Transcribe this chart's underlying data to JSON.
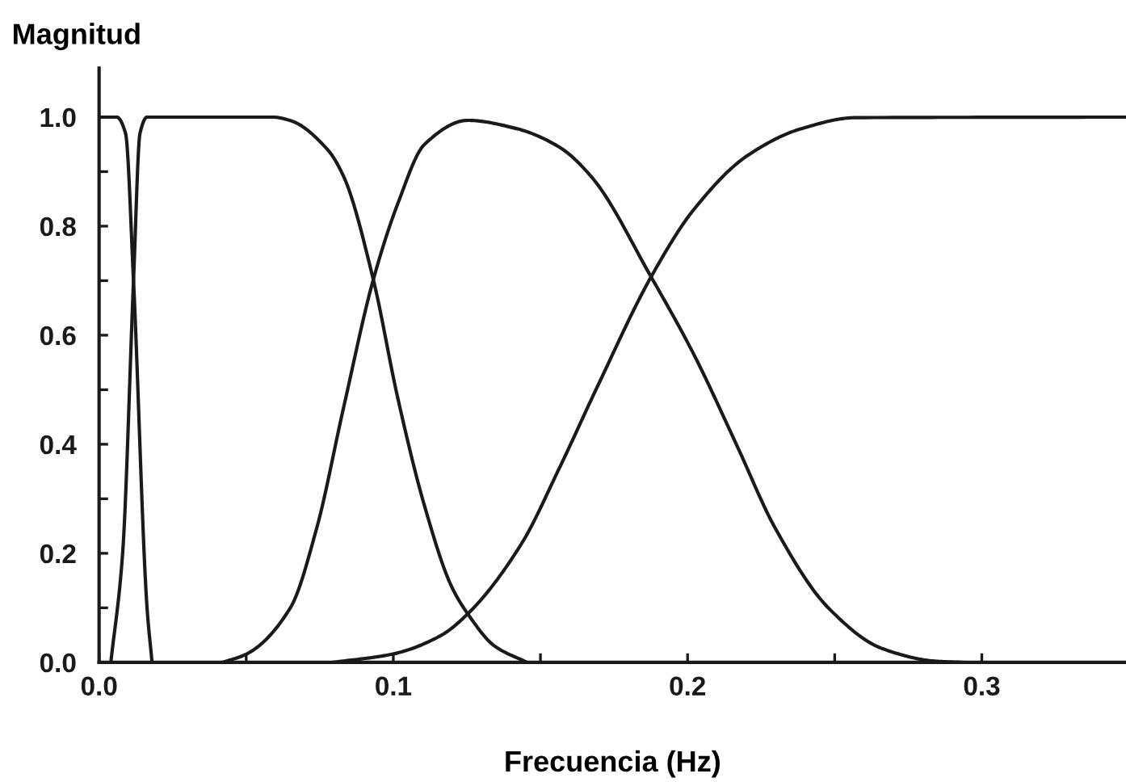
{
  "chart_data": {
    "type": "line",
    "xlabel": "Frecuencia (Hz)",
    "ylabel": "Magnitud",
    "xlim": [
      0,
      0.349
    ],
    "ylim": [
      0,
      1.09
    ],
    "xticks": [
      {
        "value": 0,
        "label": "0.0"
      },
      {
        "value": 0.05,
        "label": null
      },
      {
        "value": 0.1,
        "label": "0.1"
      },
      {
        "value": 0.15,
        "label": null
      },
      {
        "value": 0.2,
        "label": "0.2"
      },
      {
        "value": 0.25,
        "label": null
      },
      {
        "value": 0.3,
        "label": "0.3"
      }
    ],
    "yticks": [
      {
        "value": 0,
        "label": "0.0"
      },
      {
        "value": 0.1,
        "label": null
      },
      0.2,
      {
        "value": 0.3,
        "label": null
      },
      0.4,
      {
        "value": 0.5,
        "label": null
      },
      0.6,
      {
        "value": 0.7,
        "label": null
      },
      0.8,
      {
        "value": 0.9,
        "label": null
      },
      {
        "value": 1,
        "label": "1.0"
      }
    ],
    "grid": false,
    "legend": false,
    "marker": "none",
    "line_style": "solid",
    "series": [
      {
        "color": "#1a1a1a",
        "x": [
          0,
          0.006,
          0.009,
          0.0117,
          0.0163,
          0.018
        ],
        "values": [
          1.0,
          1.0,
          0.97,
          0.7,
          0.1,
          0.0
        ]
      },
      {
        "color": "#1a1a1a",
        "x": [
          0.004,
          0.008,
          0.0117,
          0.0139,
          0.0163,
          0.059,
          0.0648,
          0.0777,
          0.0832,
          0.0932,
          0.1015,
          0.1106,
          0.1198,
          0.1253,
          0.1344,
          0.1454
        ],
        "values": [
          0.0,
          0.2,
          0.7,
          0.97,
          1.0,
          1.0,
          0.994,
          0.94,
          0.89,
          0.702,
          0.485,
          0.287,
          0.139,
          0.089,
          0.03,
          0.0
        ]
      },
      {
        "color": "#1a1a1a",
        "x": [
          0.042,
          0.05,
          0.065,
          0.074,
          0.083,
          0.0932,
          0.1015,
          0.1106,
          0.1253,
          0.1418,
          0.1564,
          0.1674,
          0.1876,
          0.2022,
          0.2169,
          0.2297,
          0.248,
          0.2663,
          0.2846,
          0.2938
        ],
        "values": [
          0.0,
          0.015,
          0.1,
          0.247,
          0.465,
          0.702,
          0.841,
          0.95,
          0.994,
          0.979,
          0.945,
          0.89,
          0.707,
          0.564,
          0.396,
          0.247,
          0.099,
          0.025,
          0.002,
          0.0
        ]
      },
      {
        "color": "#1a1a1a",
        "x": [
          0.0795,
          0.0996,
          0.1161,
          0.1253,
          0.1436,
          0.1564,
          0.1692,
          0.1876,
          0.2022,
          0.2205,
          0.2388,
          0.2571,
          0.349
        ],
        "values": [
          0.0,
          0.015,
          0.049,
          0.089,
          0.218,
          0.356,
          0.504,
          0.707,
          0.831,
          0.93,
          0.979,
          0.999,
          1.0
        ]
      }
    ]
  }
}
